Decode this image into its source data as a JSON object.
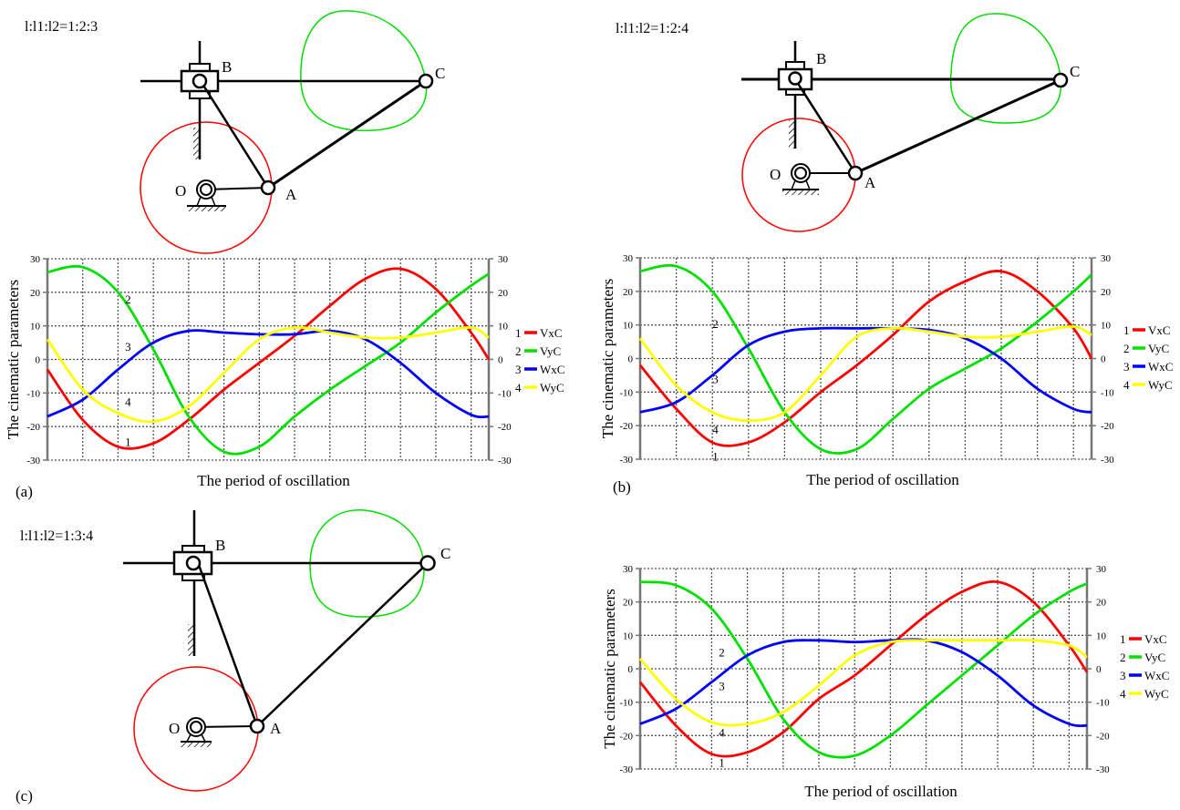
{
  "panels": [
    {
      "tag": "(a)",
      "ratio": "l:l1:l2=1:2:3",
      "points": {
        "B": "B",
        "C": "C",
        "O": "O",
        "A": "A"
      }
    },
    {
      "tag": "(b)",
      "ratio": "l:l1:l2=1:2:4",
      "points": {
        "B": "B",
        "C": "C",
        "O": "O",
        "A": "A"
      }
    },
    {
      "tag": "(c)",
      "ratio": "l:l1:l2=1:3:4",
      "points": {
        "B": "B",
        "C": "C",
        "O": "O",
        "A": "A"
      }
    }
  ],
  "colors": {
    "VxC": "#ff0000",
    "VyC": "#00e000",
    "WxC": "#0000ff",
    "WyC": "#ffff00",
    "trajectoryA": "#ff0000",
    "trajectoryC": "#00dd00"
  },
  "chart_data": [
    {
      "type": "line",
      "panel": "(a)",
      "xlabel": "The period of oscillation",
      "ylabel": "The cinematic parameters",
      "ylim": [
        -30,
        30
      ],
      "xlim": [
        0,
        12.5
      ],
      "yticks": [
        "30",
        "20",
        "10",
        "0",
        "-10",
        "-20",
        "-30"
      ],
      "grid": true,
      "legend": "right",
      "x": [
        0,
        1,
        2,
        3,
        4,
        5,
        6,
        7,
        8,
        9,
        10,
        11,
        12,
        12.5
      ],
      "series": [
        {
          "num": "1",
          "name": "VxC",
          "color": "#ff0000",
          "values": [
            -3,
            -18,
            -26,
            -25,
            -18,
            -9,
            -1,
            7,
            16,
            24,
            27,
            21,
            8,
            0
          ]
        },
        {
          "num": "2",
          "name": "VyC",
          "color": "#00e000",
          "values": [
            26,
            27.5,
            20,
            3,
            -17,
            -27.5,
            -26,
            -17,
            -9,
            -2,
            5,
            14,
            22,
            25.5
          ]
        },
        {
          "num": "3",
          "name": "WxC",
          "color": "#0000ff",
          "values": [
            -17,
            -12,
            -3,
            5,
            8.5,
            8,
            7.5,
            7.5,
            8.5,
            6,
            -1,
            -10,
            -16.5,
            -17
          ]
        },
        {
          "num": "4",
          "name": "WyC",
          "color": "#ffff00",
          "values": [
            6,
            -9,
            -16,
            -18.5,
            -14,
            -4,
            6,
            9.5,
            8,
            6.5,
            6.5,
            8,
            9.5,
            6.5
          ]
        }
      ],
      "annotations": [
        {
          "text": "2",
          "x": 2.2,
          "y": 18
        },
        {
          "text": "3",
          "x": 2.2,
          "y": 4
        },
        {
          "text": "4",
          "x": 2.2,
          "y": -12.5
        },
        {
          "text": "1",
          "x": 2.2,
          "y": -24.5
        }
      ]
    },
    {
      "type": "line",
      "panel": "(b)",
      "xlabel": "The period of oscillation",
      "ylabel": "The cinematic parameters",
      "ylim": [
        -30,
        30
      ],
      "xlim": [
        0,
        12.5
      ],
      "yticks": [
        "30",
        "20",
        "10",
        "0",
        "-10",
        "-20",
        "-30"
      ],
      "grid": true,
      "legend": "right",
      "x": [
        0,
        1,
        2,
        3,
        4,
        5,
        6,
        7,
        8,
        9,
        10,
        11,
        12,
        12.5
      ],
      "series": [
        {
          "num": "1",
          "name": "VxC",
          "color": "#ff0000",
          "values": [
            -2,
            -15,
            -25,
            -25,
            -19,
            -10,
            -2,
            7,
            17,
            23,
            26,
            20,
            9,
            0
          ]
        },
        {
          "num": "2",
          "name": "VyC",
          "color": "#00e000",
          "values": [
            26,
            27.5,
            20,
            3,
            -16,
            -27,
            -27,
            -18,
            -9,
            -3,
            3,
            11,
            20,
            25
          ]
        },
        {
          "num": "3",
          "name": "WxC",
          "color": "#0000ff",
          "values": [
            -16,
            -13,
            -5,
            4,
            8,
            9,
            9,
            9,
            8.5,
            6,
            0,
            -9,
            -15,
            -16
          ]
        },
        {
          "num": "4",
          "name": "WyC",
          "color": "#ffff00",
          "values": [
            6,
            -8,
            -16,
            -18.5,
            -16,
            -5,
            6.5,
            9,
            8,
            6.5,
            6.5,
            8,
            9.5,
            7
          ]
        }
      ],
      "annotations": [
        {
          "text": "2",
          "x": 2.0,
          "y": 10.5
        },
        {
          "text": "3",
          "x": 2.0,
          "y": -6
        },
        {
          "text": "4",
          "x": 2.0,
          "y": -21
        },
        {
          "text": "1",
          "x": 2.0,
          "y": -29
        }
      ]
    },
    {
      "type": "line",
      "panel": "(c)",
      "xlabel": "The period of oscillation",
      "ylabel": "The cinematic parameters",
      "ylim": [
        -30,
        30
      ],
      "xlim": [
        0,
        12.5
      ],
      "yticks": [
        "30",
        "20",
        "10",
        "0",
        "-10",
        "-20",
        "-30"
      ],
      "grid": true,
      "legend": "right",
      "x": [
        0,
        1,
        2,
        3,
        4,
        5,
        6,
        7,
        8,
        9,
        10,
        11,
        12,
        12.5
      ],
      "series": [
        {
          "num": "1",
          "name": "VxC",
          "color": "#ff0000",
          "values": [
            -4,
            -17,
            -25.5,
            -25,
            -19,
            -9,
            -2,
            7,
            16,
            23,
            26,
            20,
            7,
            -1
          ]
        },
        {
          "num": "2",
          "name": "VyC",
          "color": "#00e000",
          "values": [
            26,
            25,
            18,
            3,
            -15,
            -25,
            -26,
            -20,
            -11,
            -2,
            7,
            16,
            23,
            25.5
          ]
        },
        {
          "num": "3",
          "name": "WxC",
          "color": "#0000ff",
          "values": [
            -16.5,
            -12,
            -4,
            4,
            8,
            8.5,
            8,
            8.5,
            8.5,
            5,
            -2,
            -11,
            -16.5,
            -17
          ]
        },
        {
          "num": "4",
          "name": "WyC",
          "color": "#ffff00",
          "values": [
            3,
            -9,
            -16,
            -16.5,
            -13,
            -5,
            4,
            8,
            8.5,
            8.5,
            8.5,
            8.5,
            7,
            3.5
          ]
        }
      ],
      "annotations": [
        {
          "text": "2",
          "x": 2.2,
          "y": 5
        },
        {
          "text": "3",
          "x": 2.2,
          "y": -5
        },
        {
          "text": "4",
          "x": 2.2,
          "y": -19
        },
        {
          "text": "1",
          "x": 2.2,
          "y": -28
        }
      ]
    }
  ]
}
